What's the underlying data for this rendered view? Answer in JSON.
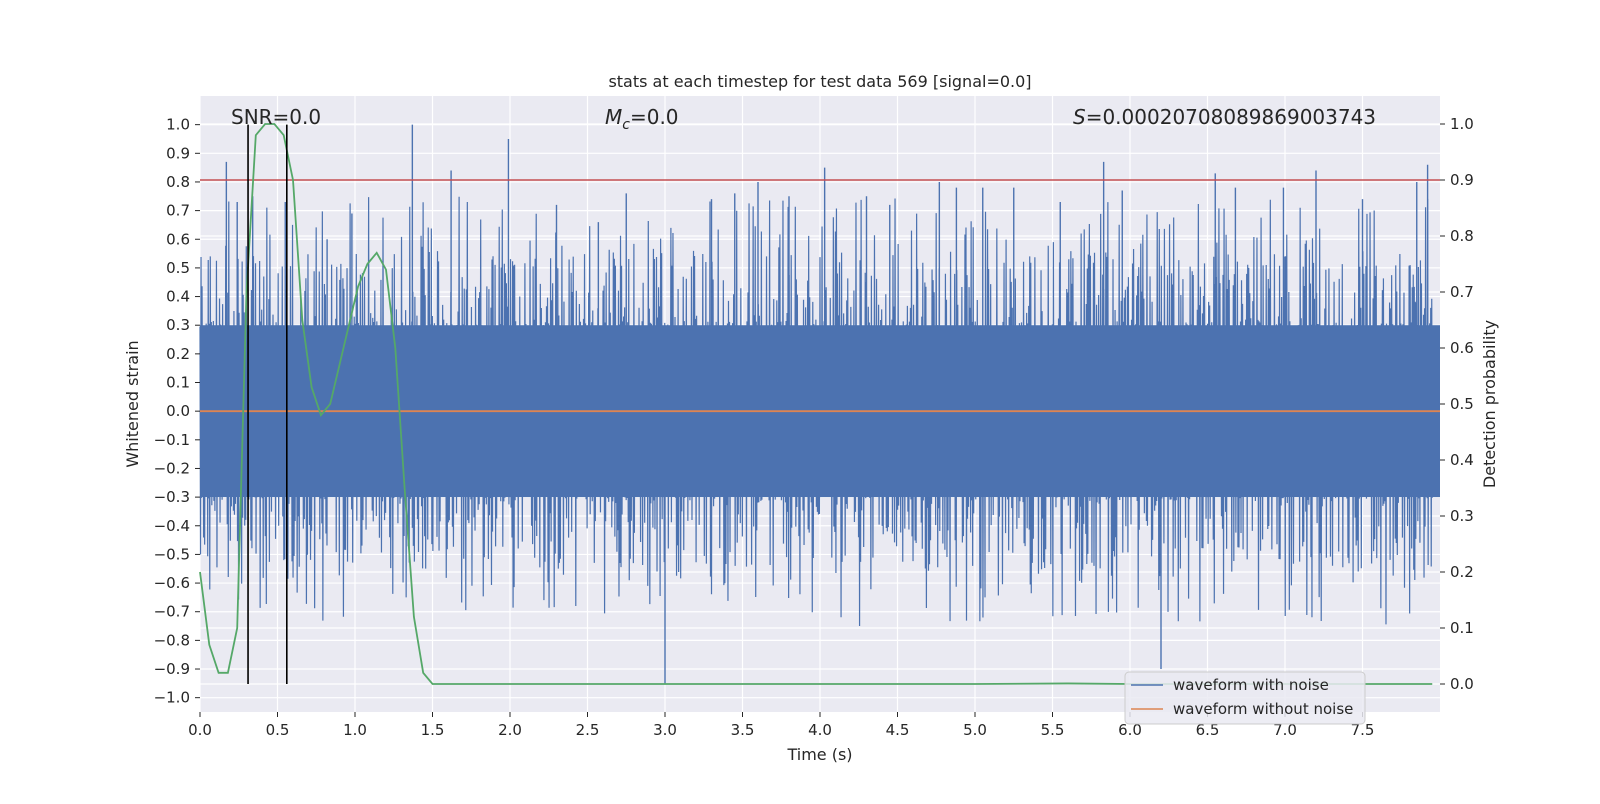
{
  "chart_data": {
    "type": "line",
    "title": "stats at each timestep for test data 569 [signal=0.0]",
    "xlabel": "Time (s)",
    "ylabel": "Whitened strain",
    "y2label": "Detection probability",
    "xlim": [
      0.0,
      8.0
    ],
    "ylim": [
      -1.05,
      1.1
    ],
    "y2lim": [
      -0.05,
      1.05
    ],
    "xticks": [
      "0.0",
      "0.5",
      "1.0",
      "1.5",
      "2.0",
      "2.5",
      "3.0",
      "3.5",
      "4.0",
      "4.5",
      "5.0",
      "5.5",
      "6.0",
      "6.5",
      "7.0",
      "7.5"
    ],
    "yticks": [
      "1.0",
      "0.9",
      "0.8",
      "0.7",
      "0.6",
      "0.5",
      "0.4",
      "0.3",
      "0.2",
      "0.1",
      "0.0",
      "−0.1",
      "−0.2",
      "−0.3",
      "−0.4",
      "−0.5",
      "−0.6",
      "−0.7",
      "−0.8",
      "−0.9",
      "−1.0"
    ],
    "y2ticks": [
      "1.0",
      "0.9",
      "0.8",
      "0.7",
      "0.6",
      "0.5",
      "0.4",
      "0.3",
      "0.2",
      "0.1",
      "0.0"
    ],
    "grid": true,
    "legend_position": "lower right",
    "annotations": {
      "snr": "SNR=0.0",
      "mc_symbol": "M",
      "mc_sub": "c",
      "mc_value": "=0.0",
      "s_symbol": "S",
      "s_value": "=0.00020708089869003743"
    },
    "threshold_line": {
      "y2": 0.9,
      "color": "#c44e52"
    },
    "vertical_markers": {
      "x": [
        0.31,
        0.56
      ],
      "color": "#000000"
    },
    "noise_envelope": {
      "core_amplitude": 0.3,
      "max_peak": 1.0,
      "min_trough": -0.95
    },
    "series": [
      {
        "name": "waveform with noise",
        "color": "#4c72b0",
        "axis": "left",
        "sample_spikes": {
          "x": [
            0.17,
            0.24,
            0.34,
            0.55,
            0.82,
            0.98,
            1.37,
            1.62,
            1.99,
            2.3,
            2.57,
            2.75,
            3.0,
            3.3,
            3.45,
            3.6,
            3.8,
            4.03,
            4.3,
            4.45,
            4.77,
            4.88,
            5.05,
            5.25,
            5.55,
            5.83,
            5.95,
            6.2,
            6.55,
            6.68,
            6.99,
            7.2,
            7.5,
            7.85,
            7.92
          ],
          "y": [
            0.87,
            0.73,
            0.75,
            0.73,
            0.6,
            0.69,
            1.0,
            0.84,
            0.95,
            0.72,
            0.66,
            0.76,
            -0.95,
            0.74,
            0.76,
            0.8,
            0.75,
            0.85,
            0.75,
            0.72,
            0.8,
            0.78,
            0.78,
            0.78,
            0.73,
            0.87,
            0.77,
            -0.9,
            0.83,
            0.78,
            0.78,
            0.84,
            0.74,
            0.8,
            0.86
          ]
        }
      },
      {
        "name": "waveform without noise",
        "color": "#dd8452",
        "axis": "left",
        "x": [
          0.0,
          8.0
        ],
        "y": [
          0.0,
          0.0
        ]
      },
      {
        "name": "",
        "color": "#55a868",
        "axis": "right",
        "x": [
          0.0,
          0.06,
          0.12,
          0.18,
          0.24,
          0.3,
          0.36,
          0.42,
          0.48,
          0.54,
          0.6,
          0.66,
          0.72,
          0.78,
          0.84,
          0.9,
          0.96,
          1.02,
          1.08,
          1.14,
          1.2,
          1.26,
          1.32,
          1.38,
          1.44,
          1.5,
          1.56,
          2.0,
          3.0,
          4.0,
          5.0,
          5.6,
          6.0,
          7.0,
          7.95
        ],
        "y": [
          0.2,
          0.07,
          0.02,
          0.02,
          0.1,
          0.7,
          0.98,
          1.0,
          1.0,
          0.98,
          0.9,
          0.65,
          0.53,
          0.48,
          0.5,
          0.57,
          0.64,
          0.71,
          0.75,
          0.77,
          0.74,
          0.6,
          0.35,
          0.12,
          0.02,
          0.0,
          0.0,
          0.0,
          0.0,
          0.0,
          0.0,
          0.001,
          0.0,
          0.0,
          0.0
        ]
      }
    ]
  }
}
